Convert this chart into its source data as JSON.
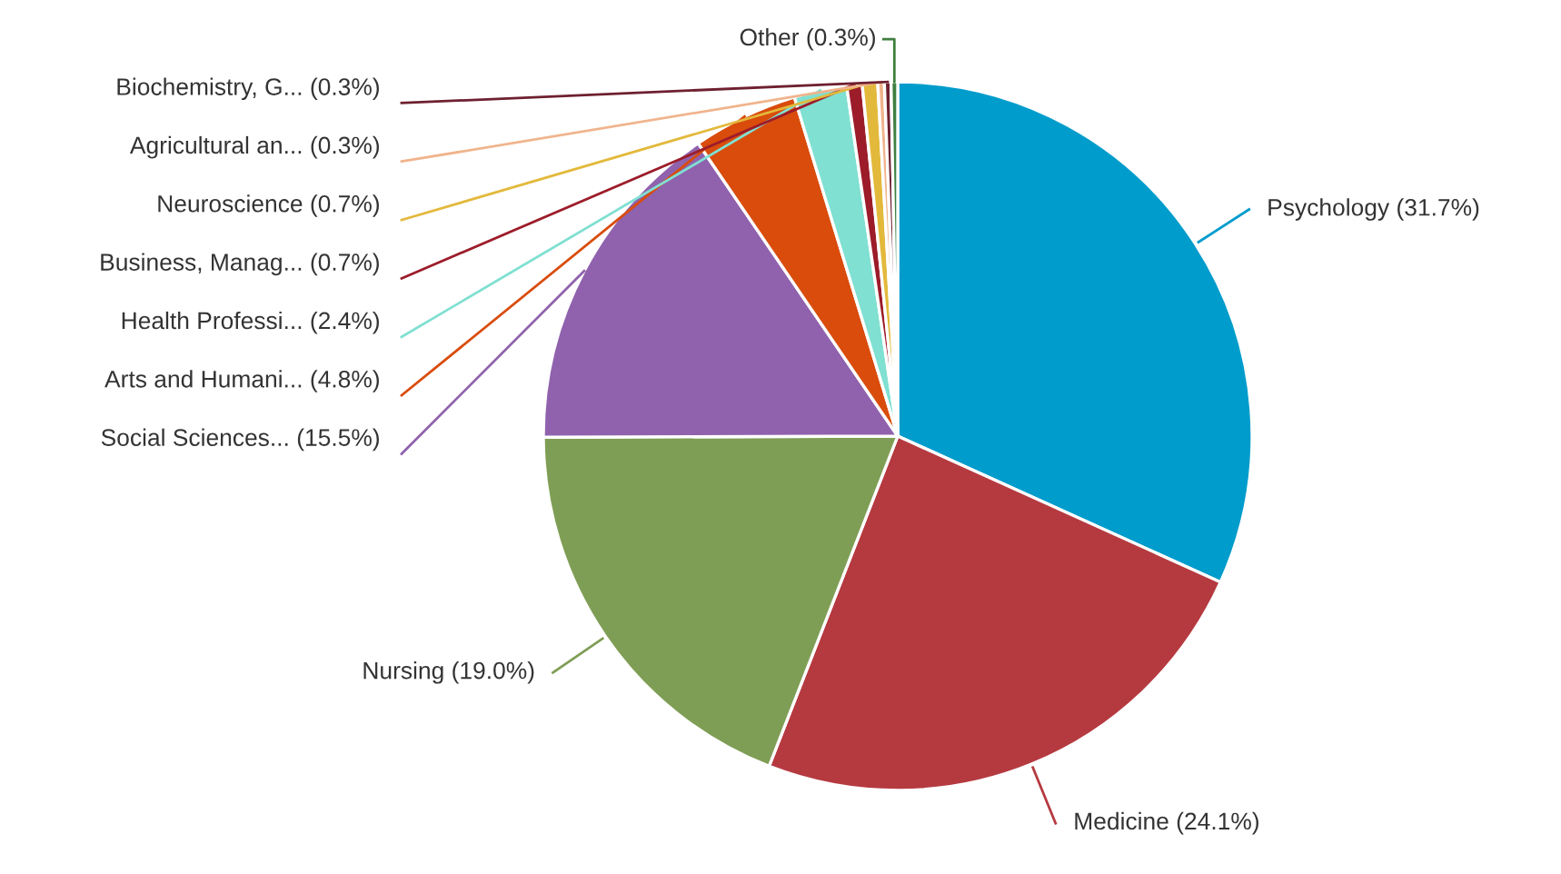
{
  "chart_data": {
    "type": "pie",
    "categories": [
      "Psychology (31.7%)",
      "Medicine (24.1%)",
      "Nursing (19.0%)",
      "Social Sciences... (15.5%)",
      "Arts and Humani... (4.8%)",
      "Health Professi... (2.4%)",
      "Business, Manag... (0.7%)",
      "Neuroscience (0.7%)",
      "Agricultural an... (0.3%)",
      "Biochemistry, G... (0.3%)",
      "Other (0.3%)"
    ],
    "values": [
      31.7,
      24.1,
      19.0,
      15.5,
      4.8,
      2.4,
      0.7,
      0.7,
      0.3,
      0.3,
      0.3
    ],
    "colors": [
      "#009ccc",
      "#b53a40",
      "#7f9e55",
      "#9062ad",
      "#d94c0c",
      "#80e0d2",
      "#9c1c2a",
      "#e3b93c",
      "#f0b48c",
      "#6e2030",
      "#3f7f3f"
    ]
  }
}
